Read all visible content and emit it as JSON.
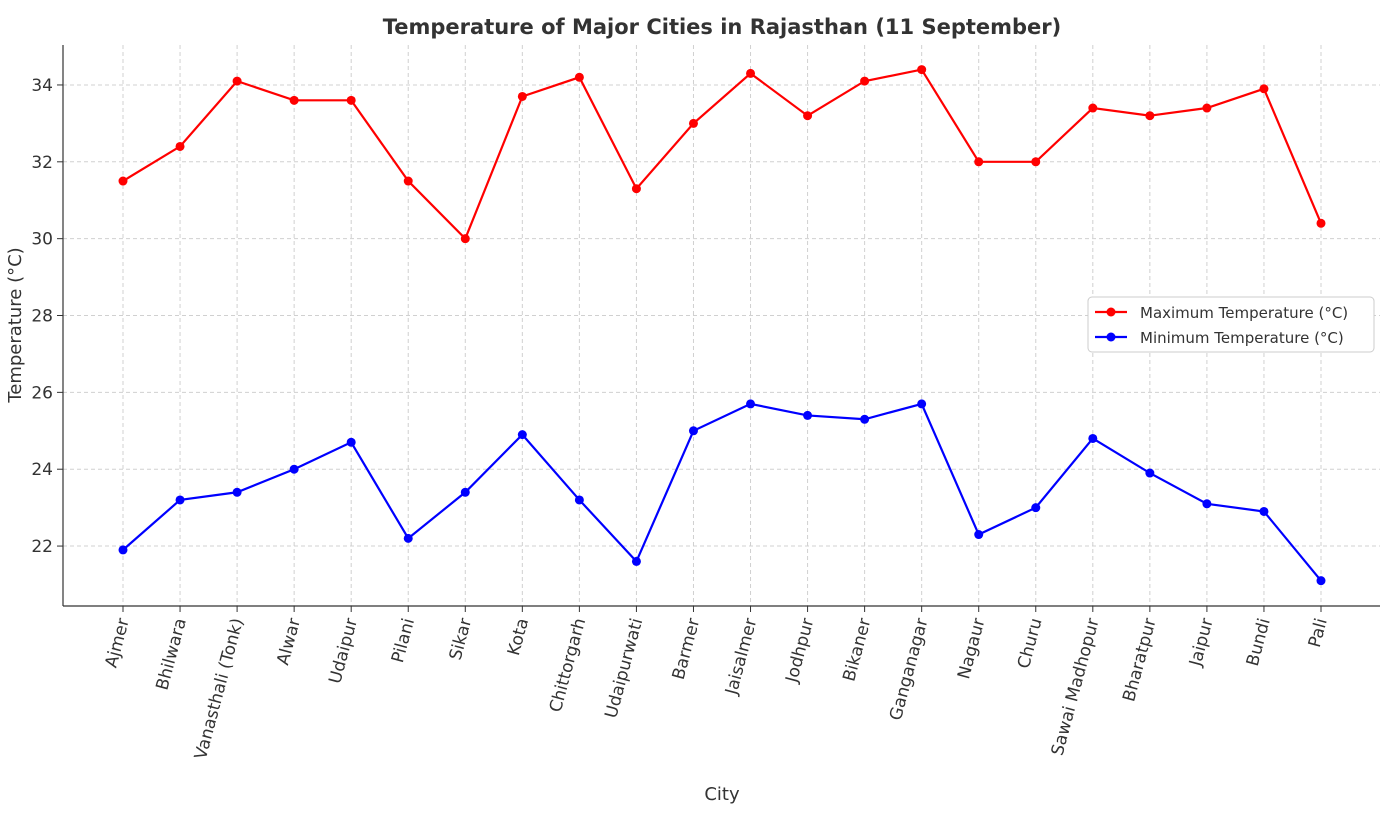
{
  "chart_data": {
    "type": "line",
    "title": "Temperature of Major Cities in Rajasthan (11 September)",
    "xlabel": "City",
    "ylabel": "Temperature (°C)",
    "categories": [
      "Ajmer",
      "Bhilwara",
      "Vanasthali (Tonk)",
      "Alwar",
      "Udaipur",
      "Pilani",
      "Sikar",
      "Kota",
      "Chittorgarh",
      "Udaipurwati",
      "Barmer",
      "Jaisalmer",
      "Jodhpur",
      "Bikaner",
      "Ganganagar",
      "Nagaur",
      "Churu",
      "Sawai Madhopur",
      "Bharatpur",
      "Jaipur",
      "Bundi",
      "Pali"
    ],
    "series": [
      {
        "name": "Maximum Temperature (°C)",
        "color": "#ff0000",
        "values": [
          31.5,
          32.4,
          34.1,
          33.6,
          33.6,
          31.5,
          30.0,
          33.7,
          34.2,
          31.3,
          33.0,
          34.3,
          33.2,
          34.1,
          34.4,
          32.0,
          32.0,
          33.4,
          33.2,
          33.4,
          33.9,
          30.4
        ]
      },
      {
        "name": "Minimum Temperature (°C)",
        "color": "#0000ff",
        "values": [
          21.9,
          23.2,
          23.4,
          24.0,
          24.7,
          22.2,
          23.4,
          24.9,
          23.2,
          21.6,
          25.0,
          25.7,
          25.4,
          25.3,
          25.7,
          22.3,
          23.0,
          24.8,
          23.9,
          23.1,
          22.9,
          21.1
        ]
      }
    ],
    "yticks": [
      22,
      24,
      26,
      28,
      30,
      32,
      34
    ],
    "ylim": [
      20.44,
      35.04
    ],
    "grid": true,
    "legend": "center-right"
  }
}
